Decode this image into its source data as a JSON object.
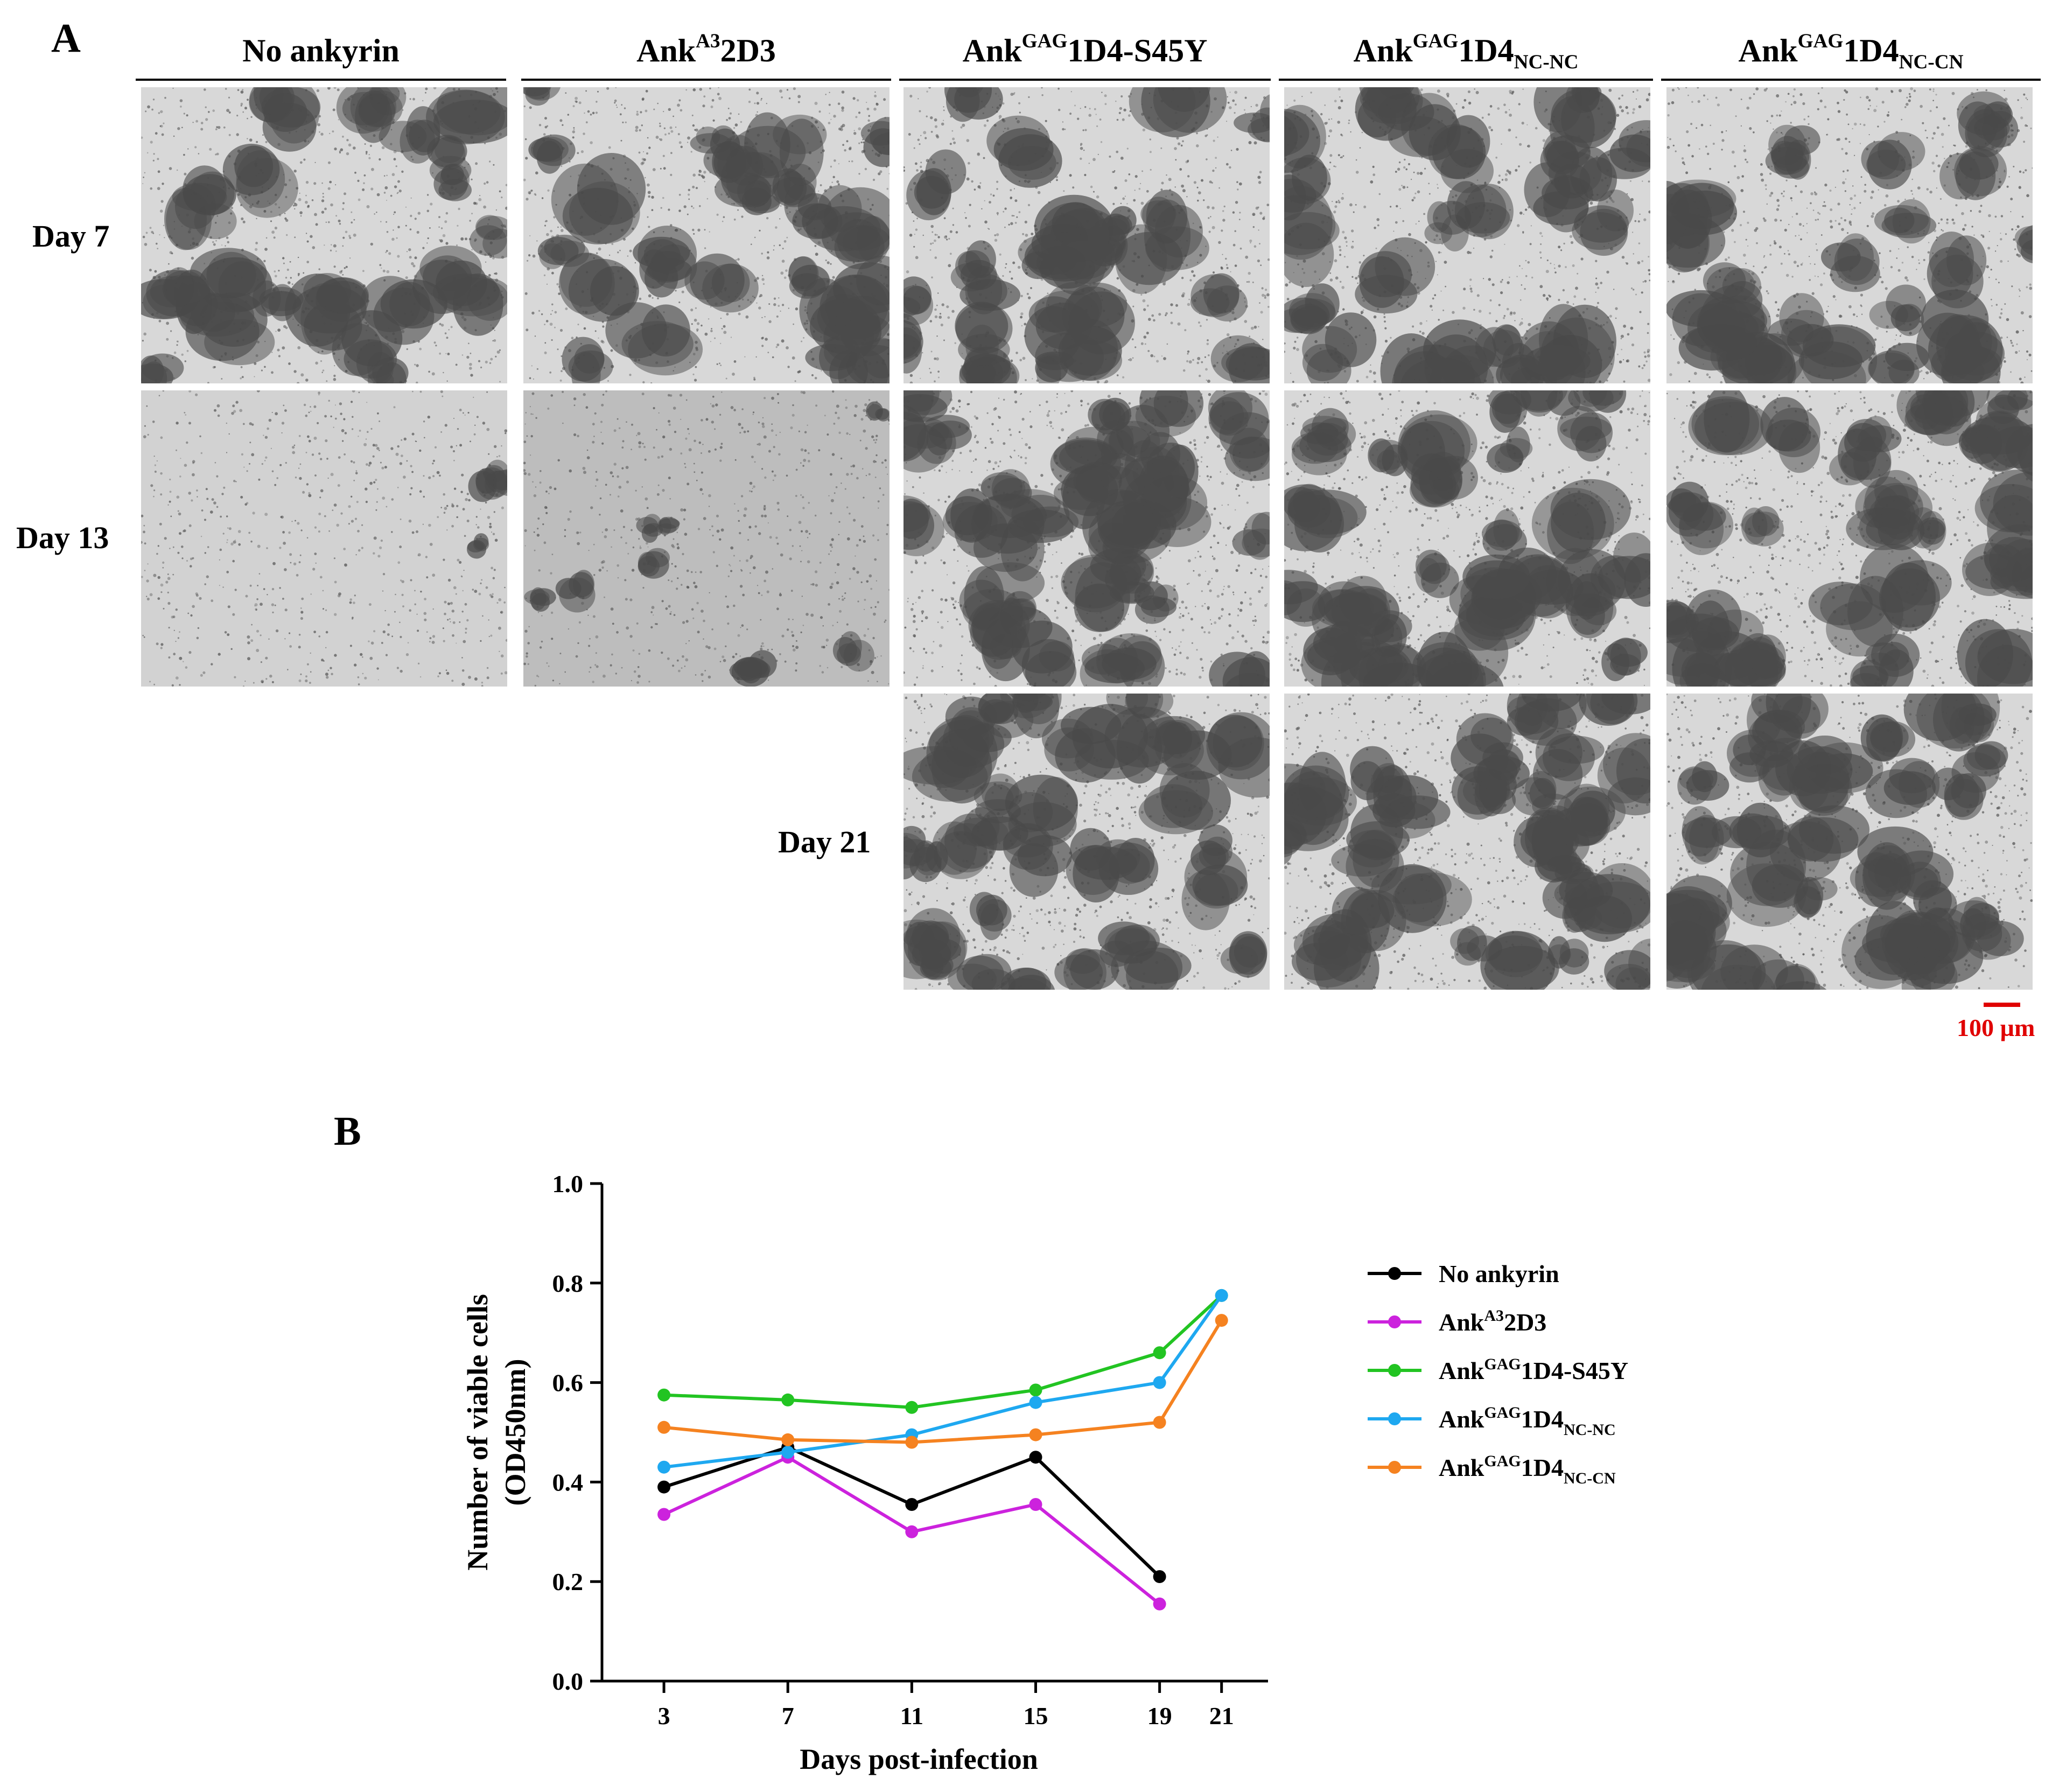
{
  "panel_a": {
    "label": "A",
    "columns": [
      {
        "base": "No ankyrin",
        "sup": "",
        "rest": "",
        "sub": ""
      },
      {
        "base": "Ank",
        "sup": "A3",
        "rest": "2D3",
        "sub": ""
      },
      {
        "base": "Ank",
        "sup": "GAG",
        "rest": "1D4-S45Y",
        "sub": ""
      },
      {
        "base": "Ank",
        "sup": "GAG",
        "rest": "1D4",
        "sub": "NC-NC"
      },
      {
        "base": "Ank",
        "sup": "GAG",
        "rest": "1D4",
        "sub": "NC-CN"
      }
    ],
    "rows": [
      "Day 7",
      "Day 13",
      "Day 21"
    ],
    "scale_bar": "100 µm",
    "scale_bar_color": "#e00000"
  },
  "panel_b": {
    "label": "B"
  },
  "chart_data": {
    "type": "line",
    "xlabel": "Days post-infection",
    "ylabel_line1": "Number of viable cells",
    "ylabel_line2": "(OD450nm)",
    "x_ticks": [
      3,
      7,
      11,
      15,
      19,
      21
    ],
    "y_ticks": [
      "0.0",
      "0.2",
      "0.4",
      "0.6",
      "0.8",
      "1.0"
    ],
    "ylim": [
      0,
      1.0
    ],
    "legend_position": "right",
    "series": [
      {
        "name": "No ankyrin",
        "base": "No ankyrin",
        "sup": "",
        "rest": "",
        "sub": "",
        "color": "#000000",
        "x": [
          3,
          7,
          11,
          15,
          19
        ],
        "values": [
          0.39,
          0.47,
          0.355,
          0.45,
          0.21
        ]
      },
      {
        "name": "AnkA32D3",
        "base": "Ank",
        "sup": "A3",
        "rest": "2D3",
        "sub": "",
        "color": "#cc22dd",
        "x": [
          3,
          7,
          11,
          15,
          19
        ],
        "values": [
          0.335,
          0.45,
          0.3,
          0.355,
          0.155
        ]
      },
      {
        "name": "AnkGAG1D4-S45Y",
        "base": "Ank",
        "sup": "GAG",
        "rest": "1D4-S45Y",
        "sub": "",
        "color": "#22c422",
        "x": [
          3,
          7,
          11,
          15,
          19,
          21
        ],
        "values": [
          0.575,
          0.565,
          0.55,
          0.585,
          0.66,
          0.775
        ]
      },
      {
        "name": "AnkGAG1D4NC-NC",
        "base": "Ank",
        "sup": "GAG",
        "rest": "1D4",
        "sub": "NC-NC",
        "color": "#1ea8f0",
        "x": [
          3,
          7,
          11,
          15,
          19,
          21
        ],
        "values": [
          0.43,
          0.46,
          0.495,
          0.56,
          0.6,
          0.775
        ]
      },
      {
        "name": "AnkGAG1D4NC-CN",
        "base": "Ank",
        "sup": "GAG",
        "rest": "1D4",
        "sub": "NC-CN",
        "color": "#f58220",
        "x": [
          3,
          7,
          11,
          15,
          19,
          21
        ],
        "values": [
          0.51,
          0.485,
          0.48,
          0.495,
          0.52,
          0.725
        ]
      }
    ]
  }
}
